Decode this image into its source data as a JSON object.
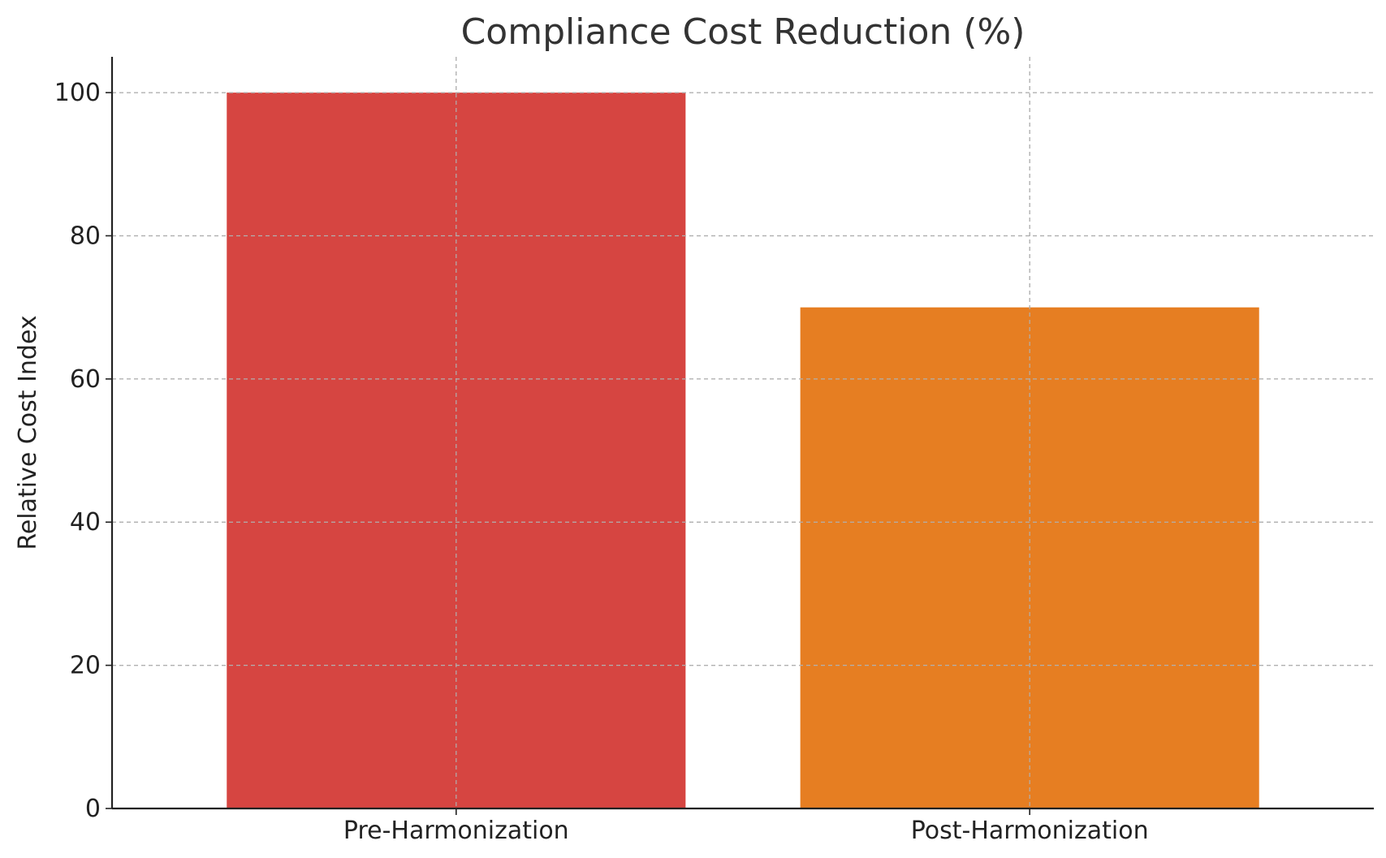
{
  "chart_data": {
    "type": "bar",
    "title": "Compliance Cost Reduction (%)",
    "xlabel": "",
    "ylabel": "Relative Cost Index",
    "categories": [
      "Pre-Harmonization",
      "Post-Harmonization"
    ],
    "values": [
      100,
      70
    ],
    "colors": [
      "#d64541",
      "#e67e22"
    ],
    "ylim": [
      0,
      105
    ],
    "yticks": [
      0,
      20,
      40,
      60,
      80,
      100
    ],
    "grid": true,
    "legend": "none"
  }
}
